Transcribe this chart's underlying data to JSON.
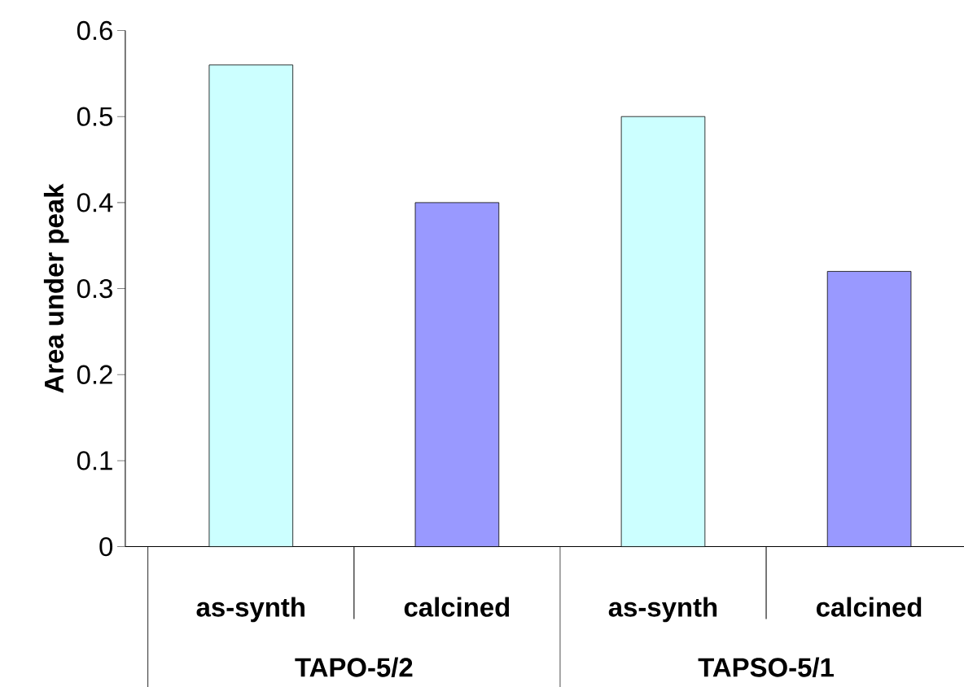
{
  "chart_data": {
    "type": "bar",
    "ylabel": "Area under peak",
    "categories": [
      "as-synth",
      "calcined",
      "as-synth",
      "calcined"
    ],
    "values": [
      0.56,
      0.4,
      0.5,
      0.32
    ],
    "colors": [
      "#ccffff",
      "#9999ff",
      "#ccffff",
      "#9999ff"
    ],
    "ylim": [
      0,
      0.6
    ],
    "yticks": [
      0,
      0.1,
      0.2,
      0.3,
      0.4,
      0.5,
      0.6
    ],
    "annotations": [
      "TAPO-5/2",
      "TAPSO-5/1"
    ]
  }
}
